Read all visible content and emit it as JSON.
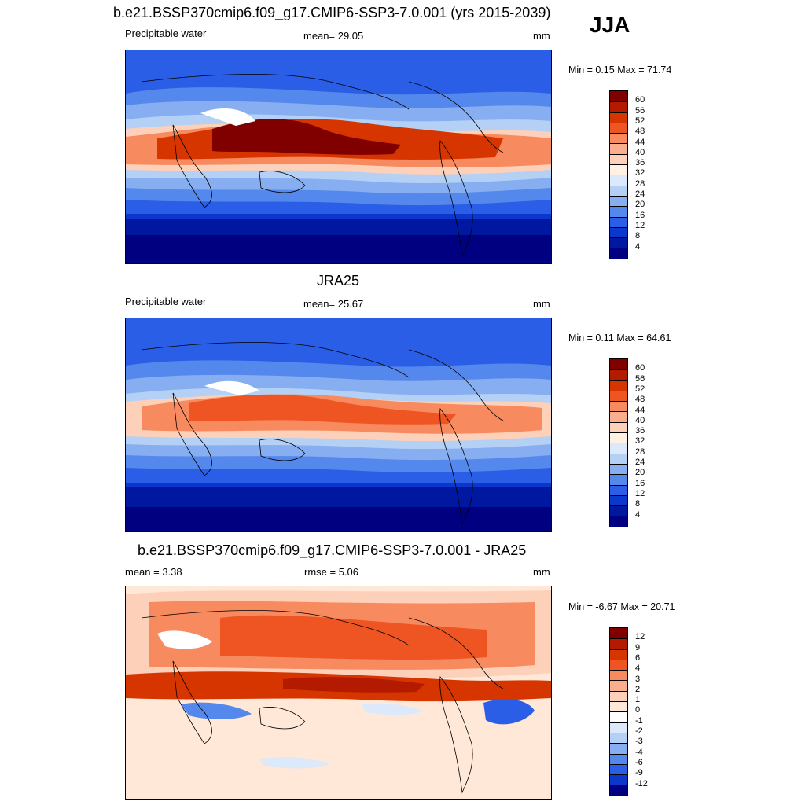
{
  "season": "JJA",
  "panels": [
    {
      "title": "b.e21.BSSP370cmip6.f09_g17.CMIP6-SSP3-7.0.001 (yrs 2015-2039)",
      "left": "Precipitable water",
      "center": "mean=  29.05",
      "units": "mm",
      "minmax": "Min =   0.15 Max =  71.74",
      "levels": [
        "60",
        "56",
        "52",
        "48",
        "44",
        "40",
        "36",
        "32",
        "28",
        "24",
        "20",
        "16",
        "12",
        "8",
        "4"
      ],
      "colors": [
        "#800000",
        "#b31a00",
        "#d63500",
        "#ee5522",
        "#f78a5e",
        "#fbae8e",
        "#fdd0b9",
        "#fff0e4",
        "#dce9fa",
        "#b4d0f5",
        "#86aef0",
        "#5588ec",
        "#2a5ee6",
        "#0c37cc",
        "#0018a0",
        "#000080"
      ]
    },
    {
      "title": "JRA25",
      "left": "Precipitable water",
      "center": "mean=  25.67",
      "units": "mm",
      "minmax": "Min =   0.11 Max =  64.61",
      "levels": [
        "60",
        "56",
        "52",
        "48",
        "44",
        "40",
        "36",
        "32",
        "28",
        "24",
        "20",
        "16",
        "12",
        "8",
        "4"
      ],
      "colors": [
        "#800000",
        "#b31a00",
        "#d63500",
        "#ee5522",
        "#f78a5e",
        "#fbae8e",
        "#fdd0b9",
        "#fff0e4",
        "#dce9fa",
        "#b4d0f5",
        "#86aef0",
        "#5588ec",
        "#2a5ee6",
        "#0c37cc",
        "#0018a0",
        "#000080"
      ]
    },
    {
      "title": "b.e21.BSSP370cmip6.f09_g17.CMIP6-SSP3-7.0.001 - JRA25",
      "left": "mean =   3.38",
      "center": "rmse =   5.06",
      "units": "mm",
      "minmax": "Min =  -6.67 Max =  20.71",
      "levels": [
        "12",
        "9",
        "6",
        "4",
        "3",
        "2",
        "1",
        "0",
        "-1",
        "-2",
        "-3",
        "-4",
        "-6",
        "-9",
        "-12"
      ],
      "colors": [
        "#800000",
        "#b31a00",
        "#d63500",
        "#ee5522",
        "#f78a5e",
        "#fbae8e",
        "#fdd0b9",
        "#ffe8d8",
        "#ffffff",
        "#dce9fa",
        "#b4d0f5",
        "#86aef0",
        "#5588ec",
        "#2a5ee6",
        "#0c37cc",
        "#000080"
      ]
    }
  ]
}
